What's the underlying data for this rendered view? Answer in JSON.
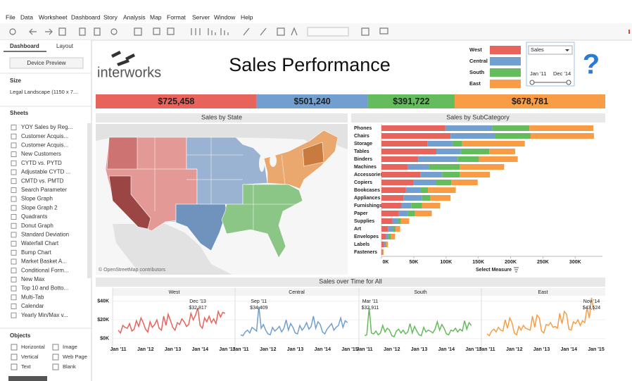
{
  "menu": [
    "File",
    "Data",
    "Worksheet",
    "Dashboard",
    "Story",
    "Analysis",
    "Map",
    "Format",
    "Server",
    "Window",
    "Help"
  ],
  "sidebar": {
    "tabs": [
      "Dashboard",
      "Layout"
    ],
    "device_preview": "Device Preview",
    "size_title": "Size",
    "size_value": "Legal Landscape (1150 x 7...",
    "sheets_title": "Sheets",
    "sheets": [
      "YOY Sales by Reg...",
      "Customer Acquis...",
      "Customer Acquis...",
      "New Customers",
      "CYTD vs. PYTD",
      "Adjustable CYTD ...",
      "CMTD vs. PMTD",
      "Search Parameter",
      "Slope Graph",
      "Slope Graph 2",
      "Quadrants",
      "Donut Graph",
      "Standard Deviation",
      "Waterfall Chart",
      "Bump Chart",
      "Market Basket A...",
      "Conditional Form...",
      "New Max",
      "Top 10 and Botto...",
      "Multi-Tab",
      "Calendar",
      "Yearly Min/Max v..."
    ],
    "objects_title": "Objects",
    "objects": [
      "Horizontal",
      "Image",
      "Vertical",
      "Web Page",
      "Text",
      "Blank"
    ]
  },
  "dashboard": {
    "logo": "interworks",
    "title": "Sales Performance",
    "help_icon": "?",
    "regions": [
      {
        "name": "West",
        "color": "#e8635c"
      },
      {
        "name": "Central",
        "color": "#729fcf"
      },
      {
        "name": "South",
        "color": "#64bc5c"
      },
      {
        "name": "East",
        "color": "#f89d45"
      }
    ],
    "measure_filter": "Sales",
    "date_range": [
      "Jan '11",
      "Dec '14"
    ],
    "totals": {
      "values": [
        725458,
        501240,
        391722,
        678781
      ],
      "value_labels": [
        "$725,458",
        "$501,240",
        "$391,722",
        "$678,781"
      ]
    },
    "sales_by_state": {
      "title": "Sales by State",
      "credit": "© OpenStreetMap contributors"
    },
    "sales_by_subcategory": {
      "title": "Sales by SubCategory",
      "categories": [
        "Phones",
        "Chairs",
        "Storage",
        "Tables",
        "Binders",
        "Machines",
        "Accessories",
        "Copiers",
        "Bookcases",
        "Appliances",
        "Furnishings",
        "Paper",
        "Supplies",
        "Art",
        "Envelopes",
        "Labels",
        "Fasteners"
      ],
      "values_by_region": [
        [
          99000,
          107000,
          71000,
          85000,
          57000,
          41000,
          60000,
          50000,
          38000,
          34000,
          31000,
          27000,
          17000,
          10000,
          7000,
          4000,
          1000
        ],
        [
          73000,
          69000,
          39000,
          38000,
          61000,
          33000,
          34000,
          35000,
          22000,
          29000,
          15000,
          14000,
          8000,
          8000,
          4000,
          2000,
          1000
        ],
        [
          57000,
          55000,
          15000,
          44000,
          33000,
          47000,
          27000,
          23000,
          12000,
          13000,
          17000,
          11000,
          5000,
          4000,
          4000,
          1000,
          500
        ],
        [
          99000,
          98000,
          97000,
          40000,
          60000,
          69000,
          47000,
          41000,
          43000,
          31000,
          28000,
          26000,
          13000,
          7000,
          6000,
          3000,
          1000
        ]
      ],
      "xlim": [
        0,
        340000
      ],
      "xticks": [
        {
          "value": 0,
          "label": "0K"
        },
        {
          "value": 50000,
          "label": "50K"
        },
        {
          "value": 100000,
          "label": "100K"
        },
        {
          "value": 150000,
          "label": "150K"
        },
        {
          "value": 200000,
          "label": "200K"
        },
        {
          "value": 250000,
          "label": "250K"
        },
        {
          "value": 300000,
          "label": "300K"
        }
      ],
      "axis_control": "Select Measure"
    },
    "sales_over_time": {
      "title": "Sales over Time for All",
      "x": [
        "Jan '11",
        "Feb '11",
        "Mar '11",
        "Apr '11",
        "May '11",
        "Jun '11",
        "Jul '11",
        "Aug '11",
        "Sep '11",
        "Oct '11",
        "Nov '11",
        "Dec '11",
        "Jan '12",
        "Feb '12",
        "Mar '12",
        "Apr '12",
        "May '12",
        "Jun '12",
        "Jul '12",
        "Aug '12",
        "Sep '12",
        "Oct '12",
        "Nov '12",
        "Dec '12",
        "Jan '13",
        "Feb '13",
        "Mar '13",
        "Apr '13",
        "May '13",
        "Jun '13",
        "Jul '13",
        "Aug '13",
        "Sep '13",
        "Oct '13",
        "Nov '13",
        "Dec '13",
        "Jan '14",
        "Feb '14",
        "Mar '14",
        "Apr '14",
        "May '14",
        "Jun '14",
        "Jul '14",
        "Aug '14",
        "Sep '14",
        "Oct '14",
        "Nov '14",
        "Dec '14"
      ],
      "xticks": [
        "Jan '11",
        "Jan '12",
        "Jan '13",
        "Jan '14",
        "Jan '15"
      ],
      "ylim": [
        -7000,
        45000
      ],
      "yticks": [
        {
          "value": 0,
          "label": "$0K"
        },
        {
          "value": 20000,
          "label": "$20K"
        },
        {
          "value": 40000,
          "label": "$40K"
        }
      ],
      "values_by_region": [
        [
          9000,
          6000,
          14000,
          12000,
          11000,
          16000,
          8000,
          10000,
          19000,
          13000,
          22000,
          17000,
          10000,
          7000,
          18000,
          12000,
          15000,
          20000,
          11000,
          9000,
          24000,
          14000,
          26000,
          19000,
          12000,
          9000,
          17000,
          15000,
          21000,
          18000,
          13000,
          15000,
          27000,
          20000,
          25000,
          32817,
          14000,
          11000,
          22000,
          18000,
          24000,
          17000,
          21000,
          16000,
          29000,
          23000,
          28000,
          27000
        ],
        [
          4000,
          3000,
          7000,
          9000,
          6000,
          12000,
          10000,
          8000,
          34409,
          11000,
          15000,
          9000,
          5000,
          4000,
          12000,
          8000,
          10000,
          13000,
          7000,
          11000,
          20000,
          9000,
          16000,
          12000,
          6000,
          5000,
          14000,
          9000,
          12000,
          17000,
          10000,
          13000,
          24000,
          11000,
          18000,
          15000,
          7000,
          5000,
          10000,
          13000,
          16000,
          9000,
          12000,
          14000,
          22000,
          12000,
          19000,
          17000
        ],
        [
          3000,
          4000,
          32911,
          6000,
          5000,
          8000,
          4000,
          6000,
          14000,
          7000,
          11000,
          9000,
          3000,
          2000,
          8000,
          10000,
          6000,
          9000,
          5000,
          7000,
          16000,
          6000,
          13000,
          8000,
          4000,
          3000,
          12000,
          7000,
          9000,
          8000,
          6000,
          10000,
          18000,
          9000,
          15000,
          11000,
          5000,
          4000,
          9000,
          8000,
          11000,
          7000,
          10000,
          8000,
          19000,
          10000,
          17000,
          14000
        ],
        [
          5000,
          3000,
          8000,
          10000,
          7000,
          12000,
          9000,
          8000,
          20000,
          11000,
          22000,
          17000,
          6000,
          4000,
          13000,
          9000,
          14000,
          11000,
          10000,
          9000,
          24000,
          12000,
          25000,
          22000,
          8000,
          6000,
          15000,
          14000,
          17000,
          12000,
          13000,
          11000,
          27000,
          16000,
          29000,
          26000,
          10000,
          9000,
          18000,
          16000,
          20000,
          14000,
          19000,
          17000,
          33000,
          22000,
          43524,
          30000
        ]
      ],
      "annotations": [
        {
          "x": "Dec '13",
          "label": "$32,817"
        },
        {
          "x": "Sep '11",
          "label": "$34,409"
        },
        {
          "x": "Mar '11",
          "label": "$32,911"
        },
        {
          "x": "Nov '14",
          "label": "$43,524"
        }
      ]
    }
  }
}
